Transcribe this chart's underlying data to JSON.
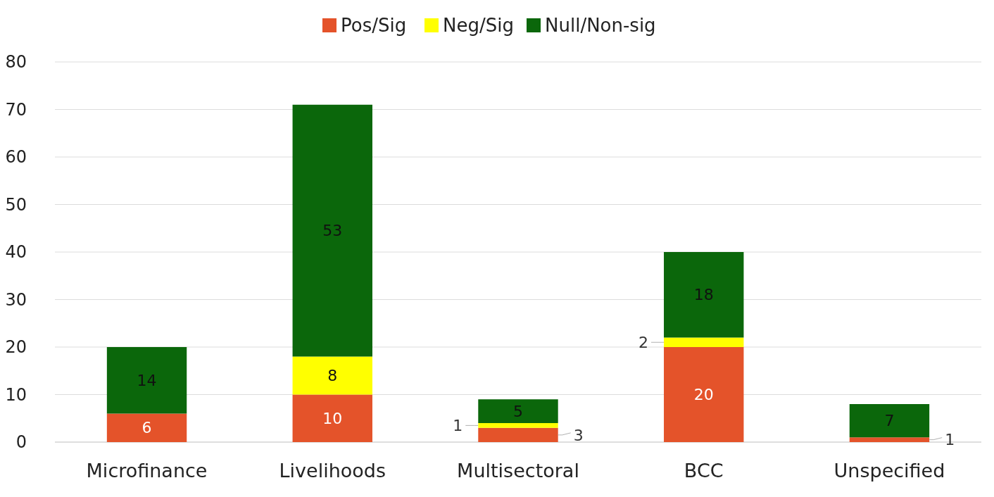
{
  "chart_data": {
    "type": "bar",
    "stacked": true,
    "categories": [
      "Microfinance",
      "Livelihoods",
      "Multisectoral",
      "BCC",
      "Unspecified"
    ],
    "series": [
      {
        "name": "Pos/Sig",
        "color": "#e4532a",
        "values": [
          6,
          10,
          3,
          20,
          1
        ],
        "value_labels": [
          "6",
          "10",
          "3",
          "20",
          "1"
        ]
      },
      {
        "name": "Neg/Sig",
        "color": "#ffff00",
        "values": [
          null,
          8,
          1,
          2,
          null
        ],
        "value_labels": [
          null,
          "8",
          "1",
          "2",
          null
        ]
      },
      {
        "name": "Null/Non-sig",
        "color": "#0b670b",
        "values": [
          14,
          53,
          5,
          18,
          7
        ],
        "value_labels": [
          "14",
          "53",
          "5",
          "18",
          "7"
        ]
      }
    ],
    "ylim": [
      0,
      80
    ],
    "yticks": [
      0,
      10,
      20,
      30,
      40,
      50,
      60,
      70,
      80
    ],
    "grid": "y",
    "legend": "top"
  }
}
